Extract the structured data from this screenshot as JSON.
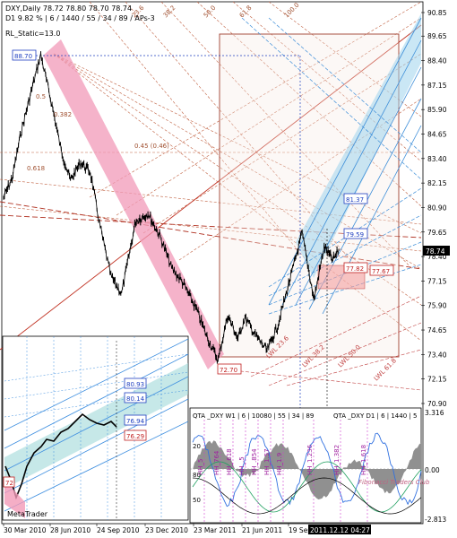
{
  "chart_data": {
    "type": "line",
    "title": "DXY,Daily  78.72 78.80 78.70 78.74",
    "subtitle": "D1  9.82 %  |  6 / 1440 / 55 / 34 / 89 / APs-3",
    "indicator_label": "RL_Static=13.0",
    "x_tick_labels": [
      "30 Mar 2010",
      "28 Jun 2010",
      "24 Sep 2010",
      "23 Dec 2010",
      "23 Mar 2011",
      "21 Jun 2011",
      "19 Sep 2011"
    ],
    "current_time_label": "2011.12.12 04:27",
    "y_tick_labels": [
      "90.85",
      "89.65",
      "88.40",
      "87.15",
      "85.90",
      "84.65",
      "83.40",
      "82.15",
      "80.90",
      "79.65",
      "78.40",
      "77.15",
      "75.90",
      "74.65",
      "73.40",
      "72.15",
      "70.90"
    ],
    "ylim": [
      70.9,
      90.85
    ],
    "current_price": "78.74",
    "series": [
      {
        "name": "DXY",
        "x": [
          "2010-03-30",
          "2010-04-15",
          "2010-05-01",
          "2010-05-20",
          "2010-06-07",
          "2010-06-28",
          "2010-07-15",
          "2010-08-01",
          "2010-08-20",
          "2010-09-07",
          "2010-09-24",
          "2010-10-15",
          "2010-11-04",
          "2010-11-30",
          "2010-12-23",
          "2011-01-15",
          "2011-02-05",
          "2011-02-25",
          "2011-03-23",
          "2011-04-10",
          "2011-05-02",
          "2011-05-20",
          "2011-06-08",
          "2011-06-21",
          "2011-07-10",
          "2011-08-01",
          "2011-08-20",
          "2011-09-19",
          "2011-10-05",
          "2011-10-27",
          "2011-11-15",
          "2011-12-01",
          "2011-12-12"
        ],
        "values": [
          81.4,
          82.4,
          84.7,
          86.8,
          88.7,
          86.1,
          83.8,
          82.3,
          83.2,
          82.7,
          80.1,
          77.4,
          76.5,
          80.2,
          80.6,
          79.4,
          77.8,
          77.1,
          75.7,
          74.4,
          73.1,
          75.4,
          74.2,
          75.3,
          74.4,
          73.6,
          74.8,
          77.9,
          79.6,
          76.2,
          78.9,
          78.2,
          78.74
        ]
      }
    ],
    "price_markers": [
      {
        "label": "88.70",
        "color": "#2040c0"
      },
      {
        "label": "81.37",
        "color": "#2040c0"
      },
      {
        "label": "79.59",
        "color": "#2040c0"
      },
      {
        "label": "77.82",
        "color": "#c02020"
      },
      {
        "label": "77.67",
        "color": "#c02020"
      },
      {
        "label": "72.70",
        "color": "#c02020"
      }
    ],
    "channel_labels": [
      "0.45 (0.46)",
      "0.5",
      "0.382",
      "0.618",
      "23.6",
      "38.2",
      "50.0",
      "61.8",
      "100.0",
      "LWL 23.6",
      "LWL 38.2",
      "LWL 50.0",
      "LWL 61.8"
    ],
    "inset": {
      "label": "MetaTrader",
      "price_markers": [
        {
          "label": "80.93",
          "color": "#2040c0"
        },
        {
          "label": "80.14",
          "color": "#2040c0"
        },
        {
          "label": "76.94",
          "color": "#2040c0"
        },
        {
          "label": "76.29",
          "color": "#c02020"
        },
        {
          "label": "72",
          "color": "#c02020"
        }
      ]
    },
    "oscillator": {
      "header_left": "QTA _DXY W1 | 6 | 10080 | 55 | 34 | 89",
      "header_right": "QTA _DXY D1 | 6 | 1440 | 5",
      "y_labels": [
        "3.316",
        "0.00",
        "-2.813"
      ],
      "left_labels": [
        "20",
        "80",
        "50"
      ],
      "credit": "Fibonacci Traders Club",
      "markers": [
        "HH_5",
        "HH_764",
        "HH_.618",
        "HH_.5",
        "HH_.854",
        "HH_1.57",
        "HH_1.9",
        "HH_1.236",
        "HH_1.382",
        "HH_1.618"
      ]
    },
    "colors": {
      "pink_band": "#f0a0b8",
      "blue_channel": "#5aa0e0",
      "teal_band": "#a0d8d8",
      "red_line": "#c03020",
      "box": "#b05040",
      "price": "#000000"
    }
  }
}
